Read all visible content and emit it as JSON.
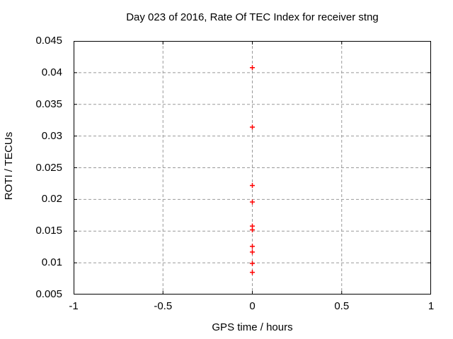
{
  "page": {
    "background": "#ffffff",
    "text_color": "#000000"
  },
  "chart_data": {
    "type": "scatter",
    "title": "Day 023 of 2016, Rate Of TEC Index for receiver stng",
    "xlabel": "GPS time / hours",
    "ylabel": "ROTI / TECUs",
    "xlim": [
      -1,
      1
    ],
    "ylim": [
      0.005,
      0.045
    ],
    "grid": true,
    "legend_position": "none",
    "x_ticks": [
      {
        "value": -1,
        "label": "-1"
      },
      {
        "value": -0.5,
        "label": "-0.5"
      },
      {
        "value": 0,
        "label": "0"
      },
      {
        "value": 0.5,
        "label": "0.5"
      },
      {
        "value": 1,
        "label": "1"
      }
    ],
    "y_ticks": [
      {
        "value": 0.005,
        "label": "0.005"
      },
      {
        "value": 0.01,
        "label": "0.01"
      },
      {
        "value": 0.015,
        "label": "0.015"
      },
      {
        "value": 0.02,
        "label": "0.02"
      },
      {
        "value": 0.025,
        "label": "0.025"
      },
      {
        "value": 0.03,
        "label": "0.03"
      },
      {
        "value": 0.035,
        "label": "0.035"
      },
      {
        "value": 0.04,
        "label": "0.04"
      },
      {
        "value": 0.045,
        "label": "0.045"
      }
    ],
    "colors": {
      "marker": "#ff0000",
      "grid": "#999999",
      "axis": "#000000"
    },
    "series": [
      {
        "name": "ROTI",
        "marker": "plus",
        "color": "#ff0000",
        "points": [
          {
            "x": 0,
            "y": 0.0408
          },
          {
            "x": 0,
            "y": 0.0314
          },
          {
            "x": 0,
            "y": 0.0222
          },
          {
            "x": 0,
            "y": 0.0196
          },
          {
            "x": 0,
            "y": 0.0158
          },
          {
            "x": 0,
            "y": 0.0152
          },
          {
            "x": 0,
            "y": 0.0126
          },
          {
            "x": 0,
            "y": 0.0117
          },
          {
            "x": 0,
            "y": 0.0099
          },
          {
            "x": 0,
            "y": 0.0085
          }
        ]
      }
    ]
  }
}
